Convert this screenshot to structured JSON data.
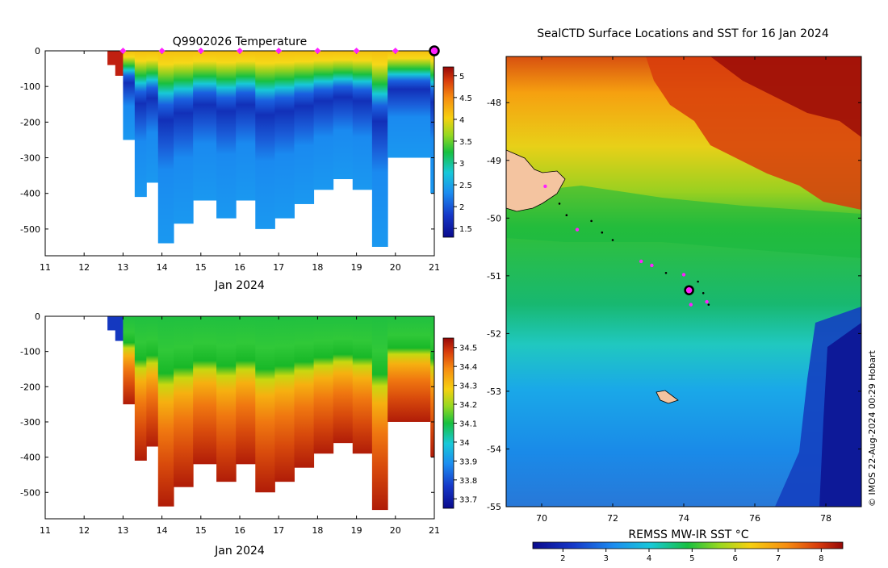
{
  "chart_data": [
    {
      "type": "heatmap",
      "title": "Q9902026  Temperature",
      "xlabel": "Jan 2024",
      "x_ticks": [
        "11",
        "12",
        "13",
        "14",
        "15",
        "16",
        "17",
        "18",
        "19",
        "20",
        "21"
      ],
      "xlim": [
        11,
        21
      ],
      "y_ticks": [
        "0",
        "-100",
        "-200",
        "-300",
        "-400",
        "-500"
      ],
      "ylim": [
        -575,
        0
      ],
      "colorbar_ticks": [
        "1.5",
        "2",
        "2.5",
        "3",
        "3.5",
        "4",
        "4.5",
        "5"
      ],
      "colorbar_range": [
        1.3,
        5.2
      ],
      "profile_markers_days": [
        13,
        14,
        15,
        16,
        17,
        18,
        19,
        20
      ],
      "current_marker_day": 21,
      "profiles": [
        {
          "day": 12.6,
          "max_depth": 40
        },
        {
          "day": 12.8,
          "max_depth": 70
        },
        {
          "day": 13.0,
          "max_depth": 250
        },
        {
          "day": 13.3,
          "max_depth": 410
        },
        {
          "day": 13.6,
          "max_depth": 370
        },
        {
          "day": 13.9,
          "max_depth": 540
        },
        {
          "day": 14.3,
          "max_depth": 485
        },
        {
          "day": 14.8,
          "max_depth": 420
        },
        {
          "day": 15.4,
          "max_depth": 470
        },
        {
          "day": 15.9,
          "max_depth": 420
        },
        {
          "day": 16.4,
          "max_depth": 500
        },
        {
          "day": 16.9,
          "max_depth": 470
        },
        {
          "day": 17.4,
          "max_depth": 430
        },
        {
          "day": 17.9,
          "max_depth": 390
        },
        {
          "day": 18.4,
          "max_depth": 360
        },
        {
          "day": 18.9,
          "max_depth": 390
        },
        {
          "day": 19.4,
          "max_depth": 550
        },
        {
          "day": 19.8,
          "max_depth": 300
        },
        {
          "day": 20.3,
          "max_depth": 300
        },
        {
          "day": 20.9,
          "max_depth": 400
        }
      ]
    },
    {
      "type": "heatmap",
      "title": "",
      "xlabel": "Jan 2024",
      "x_ticks": [
        "11",
        "12",
        "13",
        "14",
        "15",
        "16",
        "17",
        "18",
        "19",
        "20",
        "21"
      ],
      "xlim": [
        11,
        21
      ],
      "y_ticks": [
        "0",
        "-100",
        "-200",
        "-300",
        "-400",
        "-500"
      ],
      "ylim": [
        -575,
        0
      ],
      "colorbar_ticks": [
        "33.7",
        "33.8",
        "33.9",
        "34",
        "34.1",
        "34.2",
        "34.3",
        "34.4",
        "34.5"
      ],
      "colorbar_range": [
        33.65,
        34.55
      ]
    },
    {
      "type": "heatmap",
      "title": "SealCTD Surface Locations and SST for 16 Jan 2024",
      "xlabel": "REMSS MW-IR SST °C",
      "x_ticks": [
        "70",
        "72",
        "74",
        "76",
        "78"
      ],
      "xlim": [
        69,
        79
      ],
      "y_ticks": [
        "-48",
        "-49",
        "-50",
        "-51",
        "-52",
        "-53",
        "-54",
        "-55"
      ],
      "ylim": [
        -55,
        -47.2
      ],
      "colorbar_ticks": [
        "2",
        "3",
        "4",
        "5",
        "6",
        "7",
        "8"
      ],
      "colorbar_range": [
        1.3,
        8.5
      ],
      "credit": "© IMOS 22-Aug-2024 00:29 Hobart",
      "track_points": [
        {
          "lon": 70.1,
          "lat": -49.45,
          "kind": "profile"
        },
        {
          "lon": 70.5,
          "lat": -49.75,
          "kind": "track"
        },
        {
          "lon": 70.7,
          "lat": -49.95,
          "kind": "track"
        },
        {
          "lon": 71.0,
          "lat": -50.2,
          "kind": "profile"
        },
        {
          "lon": 71.4,
          "lat": -50.05,
          "kind": "track"
        },
        {
          "lon": 71.7,
          "lat": -50.25,
          "kind": "track"
        },
        {
          "lon": 72.0,
          "lat": -50.38,
          "kind": "track"
        },
        {
          "lon": 72.8,
          "lat": -50.75,
          "kind": "profile"
        },
        {
          "lon": 73.1,
          "lat": -50.82,
          "kind": "profile"
        },
        {
          "lon": 73.5,
          "lat": -50.95,
          "kind": "track"
        },
        {
          "lon": 74.0,
          "lat": -50.98,
          "kind": "profile"
        },
        {
          "lon": 74.4,
          "lat": -51.1,
          "kind": "track"
        },
        {
          "lon": 74.55,
          "lat": -51.3,
          "kind": "track"
        },
        {
          "lon": 74.2,
          "lat": -51.5,
          "kind": "profile"
        },
        {
          "lon": 74.65,
          "lat": -51.45,
          "kind": "profile"
        },
        {
          "lon": 74.7,
          "lat": -51.5,
          "kind": "track"
        },
        {
          "lon": 74.15,
          "lat": -51.25,
          "kind": "current"
        }
      ]
    }
  ]
}
